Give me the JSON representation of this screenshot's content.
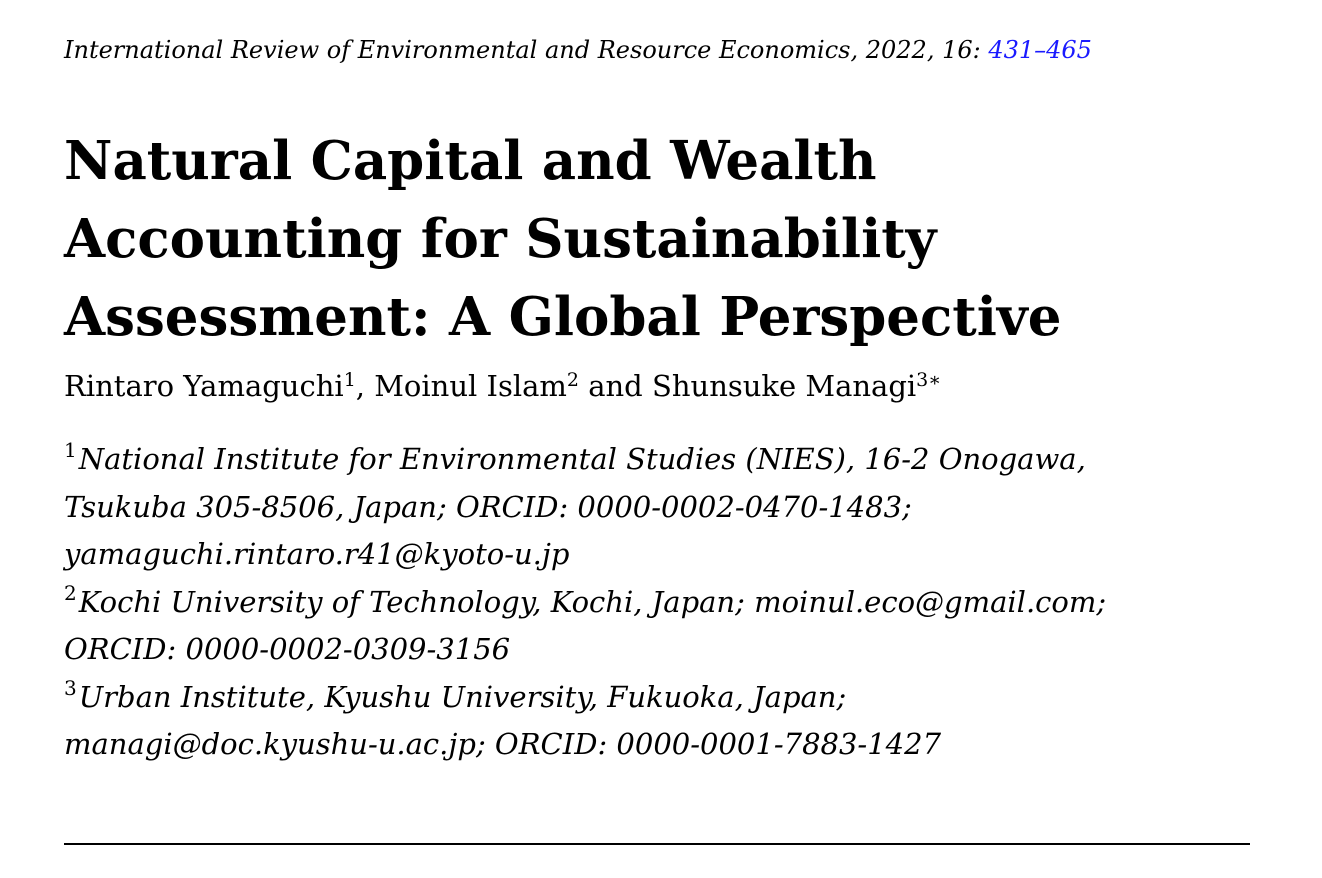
{
  "journal": {
    "citation": "International Review of Environmental and Resource Economics, 2022, 16: ",
    "pages": "431–465"
  },
  "title": {
    "line1": "Natural Capital and Wealth",
    "line2": "Accounting for Sustainability",
    "line3": "Assessment: A Global Perspective"
  },
  "authors": {
    "author1": "Rintaro Yamaguchi",
    "author1_sup": "1",
    "sep1": ", ",
    "author2": "Moinul Islam",
    "author2_sup": "2",
    "sep2": " and ",
    "author3": "Shunsuke Managi",
    "author3_sup": "3∗"
  },
  "affiliations": {
    "a1_mark": "1",
    "a1_line1": "National Institute for Environmental Studies (NIES), 16-2 Onogawa,",
    "a1_line2": "Tsukuba 305-8506, Japan; ORCID: 0000-0002-0470-1483;",
    "a1_line3": "yamaguchi.rintaro.r41@kyoto-u.jp",
    "a2_mark": "2",
    "a2_line1": "Kochi University of Technology, Kochi, Japan; moinul.eco@gmail.com;",
    "a2_line2": "ORCID: 0000-0002-0309-3156",
    "a3_mark": "3",
    "a3_line1": "Urban Institute, Kyushu University, Fukuoka, Japan;",
    "a3_line2": "managi@doc.kyushu-u.ac.jp; ORCID: 0000-0001-7883-1427"
  },
  "colors": {
    "link": "#1a1aff",
    "text": "#000000",
    "background": "#ffffff"
  }
}
